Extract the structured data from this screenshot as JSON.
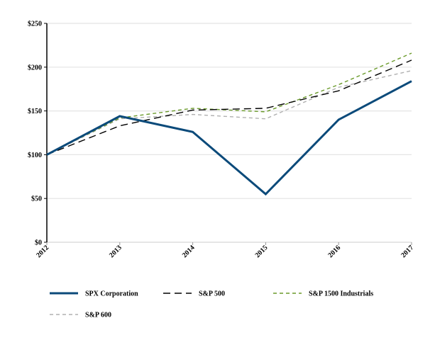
{
  "chart_data": {
    "type": "line",
    "title": "",
    "xlabel": "",
    "ylabel": "",
    "x": [
      "2012",
      "2013",
      "2014",
      "2015",
      "2016",
      "2017"
    ],
    "ylim": [
      0,
      250
    ],
    "yticks": [
      0,
      50,
      100,
      150,
      200,
      250
    ],
    "ytick_labels": [
      "$0",
      "$50",
      "$100",
      "$150",
      "$200",
      "$250"
    ],
    "grid": true,
    "legend_position": "bottom",
    "series": [
      {
        "name": "SPX Corporation",
        "color": "#0b4a7a",
        "style": "solid",
        "values": [
          100,
          144,
          126,
          55,
          140,
          184
        ]
      },
      {
        "name": "S&P 500",
        "color": "#000000",
        "style": "long-dash",
        "values": [
          100,
          133,
          151,
          153,
          173,
          208
        ]
      },
      {
        "name": "S&P 1500 Industrials",
        "color": "#6a9a2a",
        "style": "short-dash",
        "values": [
          100,
          142,
          153,
          149,
          180,
          216
        ]
      },
      {
        "name": "S&P 600",
        "color": "#b0b0b0",
        "style": "short-dash",
        "values": [
          100,
          141,
          146,
          141,
          177,
          196
        ]
      }
    ]
  }
}
